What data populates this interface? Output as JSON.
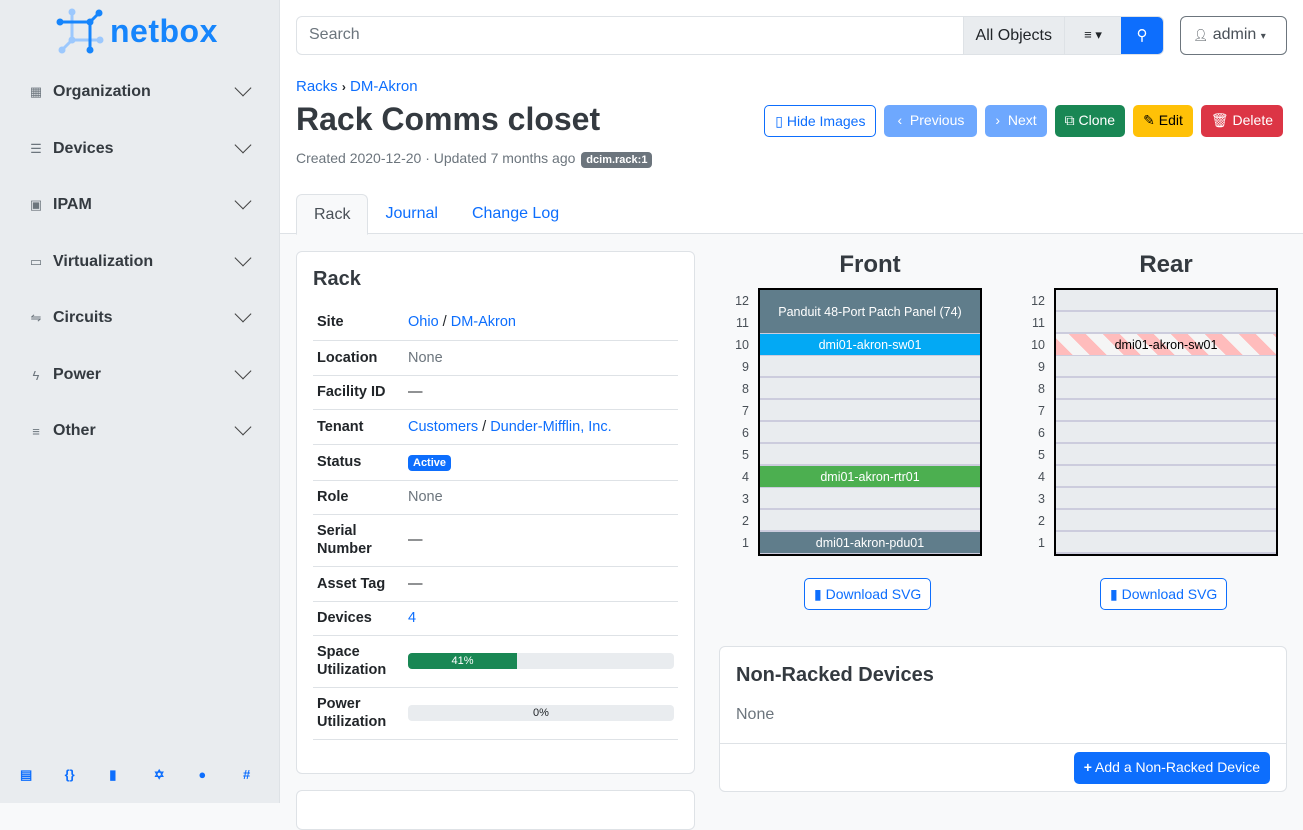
{
  "brand": {
    "name": "netbox",
    "color": "#1685fc"
  },
  "sidebar": {
    "items": [
      {
        "label": "Organization",
        "icon": "building-icon"
      },
      {
        "label": "Devices",
        "icon": "server-icon"
      },
      {
        "label": "IPAM",
        "icon": "ip-icon"
      },
      {
        "label": "Virtualization",
        "icon": "monitor-icon"
      },
      {
        "label": "Circuits",
        "icon": "circuit-icon"
      },
      {
        "label": "Power",
        "icon": "bolt-icon"
      },
      {
        "label": "Other",
        "icon": "lines-icon"
      }
    ],
    "footer_icons": [
      "book-icon",
      "api-icon",
      "docs-icon",
      "graphql-icon",
      "github-icon",
      "slack-icon"
    ]
  },
  "search": {
    "placeholder": "Search",
    "scope": "All Objects"
  },
  "user": {
    "name": "admin"
  },
  "breadcrumb": [
    "Racks",
    "DM-Akron"
  ],
  "page": {
    "title": "Rack Comms closet",
    "meta": "Created 2020-12-20 · Updated 7 months ago",
    "tag": "dcim.rack:1"
  },
  "actions": {
    "hide_images": "Hide Images",
    "previous": "Previous",
    "next": "Next",
    "clone": "Clone",
    "edit": "Edit",
    "delete": "Delete"
  },
  "tabs": [
    "Rack",
    "Journal",
    "Change Log"
  ],
  "rack_card": {
    "title": "Rack",
    "rows": {
      "site": {
        "label": "Site",
        "v1": "Ohio",
        "sep": " / ",
        "v2": "DM-Akron"
      },
      "location": {
        "label": "Location",
        "value": "None"
      },
      "facility": {
        "label": "Facility ID",
        "value": "—"
      },
      "tenant": {
        "label": "Tenant",
        "v1": "Customers",
        "sep": " / ",
        "v2": "Dunder-Mifflin, Inc."
      },
      "status": {
        "label": "Status",
        "value": "Active",
        "color": "#0d6efd"
      },
      "role": {
        "label": "Role",
        "value": "None"
      },
      "serial": {
        "label": "Serial Number",
        "value": "—"
      },
      "asset": {
        "label": "Asset Tag",
        "value": "—"
      },
      "devices": {
        "label": "Devices",
        "value": "4"
      },
      "space": {
        "label": "Space Utilization",
        "value": "41%",
        "percent": 41
      },
      "power": {
        "label": "Power Utilization",
        "value": "0%",
        "percent": 0
      }
    }
  },
  "elevations": {
    "front": {
      "title": "Front",
      "devices": [
        {
          "name": "Panduit 48-Port Patch Panel (74)",
          "top": 12,
          "height": 2,
          "color": "#607d8b"
        },
        {
          "name": "dmi01-akron-sw01",
          "top": 10,
          "height": 1,
          "color": "#03a9f4"
        },
        {
          "name": "dmi01-akron-rtr01",
          "top": 4,
          "height": 1,
          "color": "#4caf50"
        },
        {
          "name": "dmi01-akron-pdu01",
          "top": 1,
          "height": 1,
          "color": "#607d8b"
        }
      ]
    },
    "rear": {
      "title": "Rear",
      "devices": [
        {
          "name": "dmi01-akron-sw01",
          "top": 10,
          "height": 1,
          "color": "striped"
        }
      ]
    },
    "units": [
      12,
      11,
      10,
      9,
      8,
      7,
      6,
      5,
      4,
      3,
      2,
      1
    ],
    "download_label": "Download SVG"
  },
  "non_racked": {
    "title": "Non-Racked Devices",
    "value": "None",
    "add_label": "Add a Non-Racked Device"
  }
}
